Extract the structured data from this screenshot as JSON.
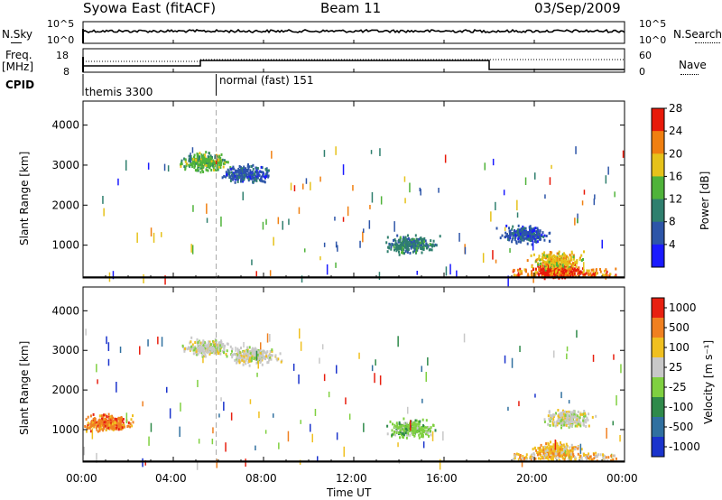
{
  "header": {
    "radar": "Syowa East (fitACF)",
    "beam": "Beam 11",
    "date": "03/Sep/2009"
  },
  "noise_panel": {
    "left_label": "N.Sky",
    "right_label": "N.Search",
    "ticks_left": [
      "10^5",
      "10^0"
    ],
    "ticks_right": [
      "10^5",
      "10^0"
    ]
  },
  "freq_panel": {
    "left_label_line1": "Freq.",
    "left_label_line2": "[MHz]",
    "ticks_left": [
      "18",
      "8"
    ],
    "ticks_right": [
      "60",
      "0"
    ],
    "right_label": "Nave"
  },
  "cpid_panel": {
    "label": "CPID",
    "modes": [
      "themis 3300",
      "normal (fast) 151"
    ]
  },
  "chart_data": [
    {
      "type": "heatmap",
      "name": "power",
      "ylabel": "Slant Range [km]",
      "yticks": [
        "1000",
        "2000",
        "3000",
        "4000"
      ],
      "ylim": [
        180,
        4600
      ],
      "xlim": [
        0,
        24
      ],
      "colorbar_label": "Power [dB]",
      "colorbar_ticks": [
        "4",
        "8",
        "12",
        "16",
        "20",
        "24",
        "28"
      ],
      "colorbar_colors": [
        "#1a1aff",
        "#2d55a8",
        "#2f7f6e",
        "#4fb33a",
        "#e6c21a",
        "#f07f10",
        "#e81a0a"
      ],
      "clusters": [
        {
          "x": 5.3,
          "y": 3100,
          "level": 3
        },
        {
          "x": 7.2,
          "y": 2800,
          "level": 1
        },
        {
          "x": 14.5,
          "y": 1050,
          "level": 2
        },
        {
          "x": 19.5,
          "y": 1300,
          "level": 1
        },
        {
          "x": 21.0,
          "y": 380,
          "level": 6
        },
        {
          "x": 21.0,
          "y": 650,
          "level": 4
        }
      ]
    },
    {
      "type": "heatmap",
      "name": "velocity",
      "ylabel": "Slant Range [km]",
      "yticks": [
        "1000",
        "2000",
        "3000",
        "4000"
      ],
      "ylim": [
        180,
        4600
      ],
      "xlim": [
        0,
        24
      ],
      "colorbar_label": "Velocity [m s⁻¹]",
      "colorbar_ticks": [
        "1000",
        "500",
        "100",
        "25",
        "-25",
        "-100",
        "-500",
        "-1000"
      ],
      "colorbar_colors": [
        "#1a33cc",
        "#3070a0",
        "#2f8a4a",
        "#7fd040",
        "#c8c8c8",
        "#f0c020",
        "#f08020",
        "#e82010"
      ],
      "clusters": [
        {
          "x": 5.5,
          "y": 3100,
          "level": 4
        },
        {
          "x": 7.5,
          "y": 2900,
          "level": 4
        },
        {
          "x": 14.5,
          "y": 1050,
          "level": 3
        },
        {
          "x": 21.5,
          "y": 1300,
          "level": 4
        },
        {
          "x": 21.0,
          "y": 500,
          "level": 5
        },
        {
          "x": 1.0,
          "y": 1200,
          "level": 6
        }
      ]
    }
  ],
  "x_axis": {
    "ticks": [
      "00:00",
      "04:00",
      "08:00",
      "12:00",
      "16:00",
      "20:00",
      "00:00"
    ],
    "label": "Time UT"
  }
}
